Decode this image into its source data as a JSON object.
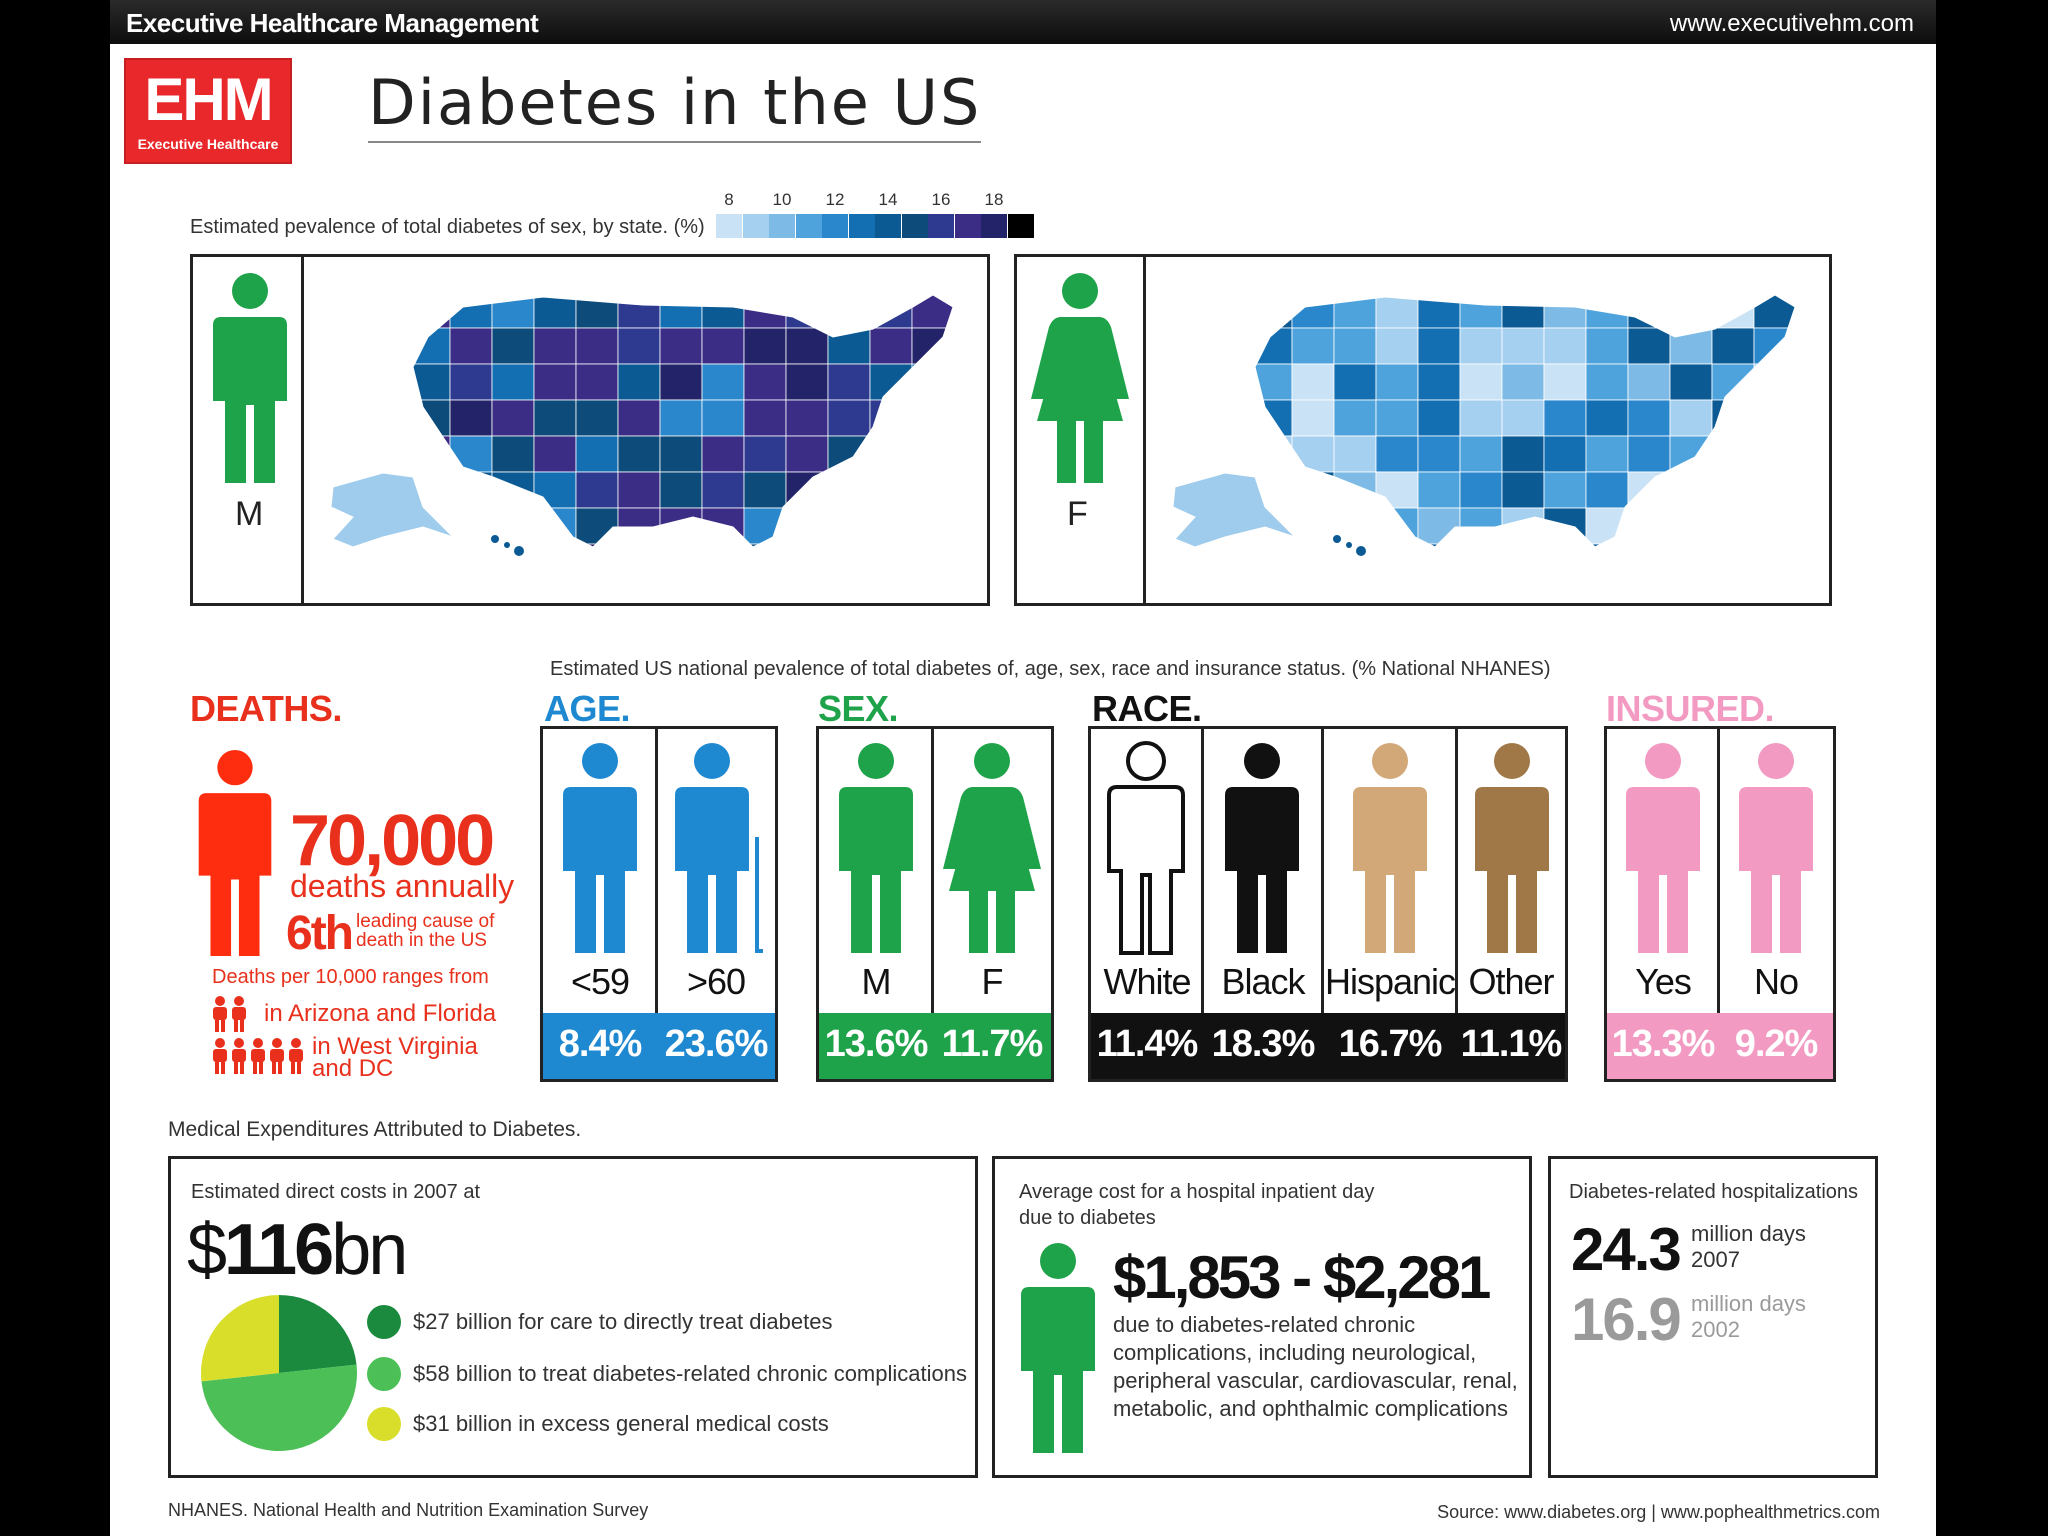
{
  "header": {
    "brand": "Executive Healthcare Management",
    "url": "www.executivehm.com"
  },
  "logo": {
    "text": "EHM",
    "sub": "Executive Healthcare"
  },
  "title": "Diabetes in the US",
  "maps": {
    "caption": "Estimated pevalence of total diabetes of sex, by state. (%)",
    "legend_ticks": [
      "8",
      "10",
      "12",
      "14",
      "16",
      "18"
    ],
    "legend_colors": [
      "#c9e2f5",
      "#a6d0ef",
      "#7dbbe6",
      "#4fa3dc",
      "#2a87cb",
      "#136eb2",
      "#0b5a94",
      "#0d4b7a",
      "#2e3a8f",
      "#3b2d86",
      "#23236a",
      "#000000"
    ],
    "male_label": "M",
    "female_label": "F",
    "male_color": "#1fa34a",
    "female_color": "#1fa34a"
  },
  "national_note": "Estimated US national pevalence of total diabetes of, age, sex, race and insurance status. (% National NHANES)",
  "deaths": {
    "heading": "DEATHS.",
    "count": "70,000",
    "count_sub": "deaths annually",
    "rank": "6th",
    "rank_note_1": "leading cause of",
    "rank_note_2": "death in the US",
    "range_label": "Deaths per 10,000 ranges from",
    "range_low": "in Arizona and Florida",
    "range_high_1": "in West Virginia",
    "range_high_2": "and DC",
    "color": "#e8301c"
  },
  "groups": {
    "age": {
      "heading": "AGE.",
      "color": "#1e88d0",
      "items": [
        {
          "label": "<59",
          "value": "8.4%"
        },
        {
          "label": ">60",
          "value": "23.6%"
        }
      ]
    },
    "sex": {
      "heading": "SEX.",
      "color": "#1fa34a",
      "items": [
        {
          "label": "M",
          "value": "13.6%"
        },
        {
          "label": "F",
          "value": "11.7%"
        }
      ]
    },
    "race": {
      "heading": "RACE.",
      "color": "#111111",
      "items": [
        {
          "label": "White",
          "value": "11.4%"
        },
        {
          "label": "Black",
          "value": "18.3%"
        },
        {
          "label": "Hispanic",
          "value": "16.7%"
        },
        {
          "label": "Other",
          "value": "11.1%"
        }
      ]
    },
    "insured": {
      "heading": "INSURED.",
      "color": "#f29ac2",
      "items": [
        {
          "label": "Yes",
          "value": "13.3%"
        },
        {
          "label": "No",
          "value": "9.2%"
        }
      ]
    }
  },
  "race_colors": [
    "#ffffff",
    "#111111",
    "#d2a878",
    "#a07848"
  ],
  "medical": {
    "caption": "Medical Expenditures Attributed to Diabetes.",
    "direct": {
      "label": "Estimated direct costs in 2007 at",
      "currency": "$",
      "amount": "116",
      "unit": "bn",
      "items": [
        {
          "text": "$27 billion for care to directly treat diabetes",
          "value": 27,
          "color": "#1b8a3e"
        },
        {
          "text": "$58 billion to treat diabetes-related chronic complications",
          "value": 58,
          "color": "#4cc057"
        },
        {
          "text": "$31 billion in excess general medical costs",
          "value": 31,
          "color": "#d8de2a"
        }
      ]
    },
    "inpatient": {
      "label_1": "Average cost for a hospital inpatient day",
      "label_2": "due to diabetes",
      "cost": "$1,853 - $2,281",
      "note_1": "due to diabetes-related chronic",
      "note_2": "complications, including neurological,",
      "note_3": "peripheral vascular, cardiovascular, renal,",
      "note_4": "metabolic, and ophthalmic complications"
    },
    "hospitalizations": {
      "label": "Diabetes-related hospitalizations",
      "rows": [
        {
          "value": "24.3",
          "unit": "million days",
          "year": "2007",
          "color": "#111111"
        },
        {
          "value": "16.9",
          "unit": "million days",
          "year": "2002",
          "color": "#9a9a9a"
        }
      ]
    }
  },
  "footer": {
    "left": "NHANES. National Health and Nutrition Examination Survey",
    "right": "Source: www.diabetes.org | www.pophealthmetrics.com"
  }
}
